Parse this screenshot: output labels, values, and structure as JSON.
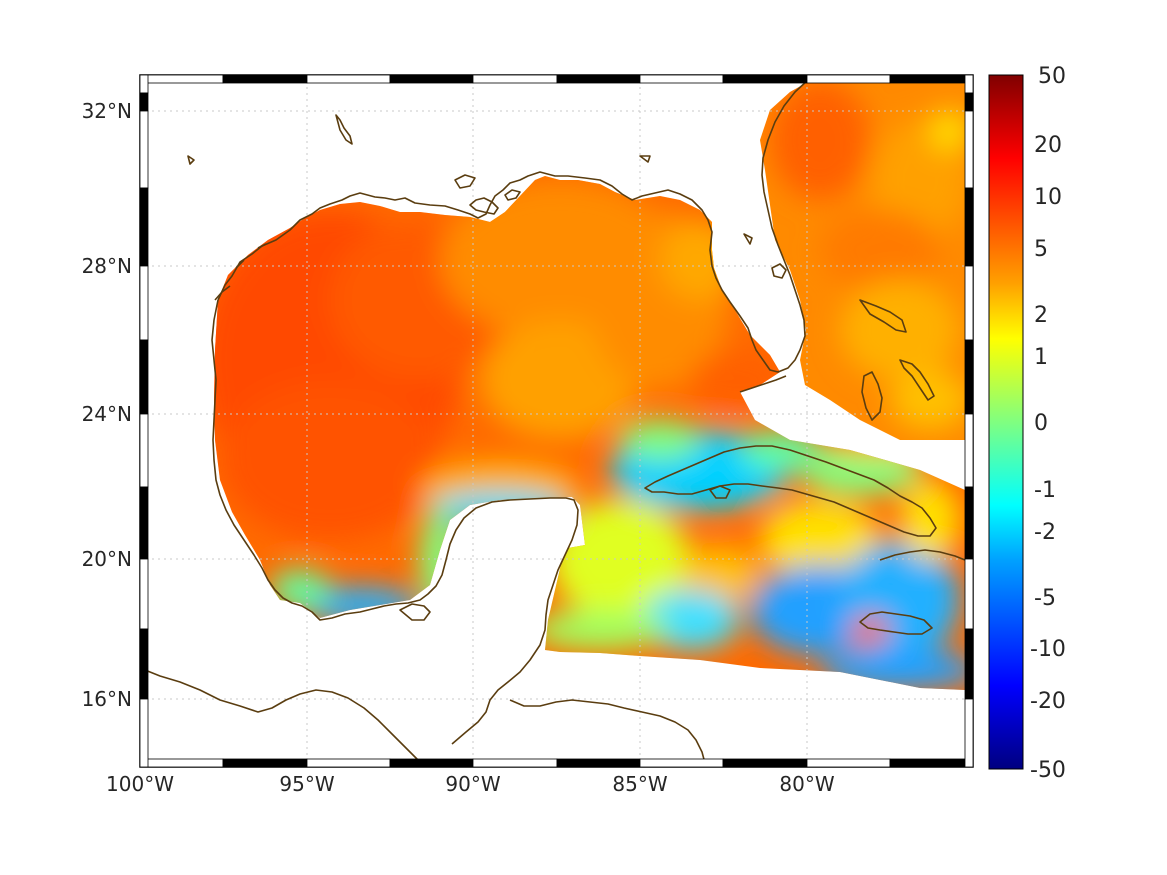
{
  "map": {
    "lon_range": [
      -100,
      -75
    ],
    "lat_range": [
      14.2,
      33
    ],
    "x_ticks": [
      {
        "lon": -100,
        "label": "100°W"
      },
      {
        "lon": -95,
        "label": "95°W"
      },
      {
        "lon": -90,
        "label": "90°W"
      },
      {
        "lon": -85,
        "label": "85°W"
      },
      {
        "lon": -80,
        "label": "80°W"
      }
    ],
    "y_ticks": [
      {
        "lat": 32,
        "label": "32°N"
      },
      {
        "lat": 28,
        "label": "28°N"
      },
      {
        "lat": 24,
        "label": "24°N"
      },
      {
        "lat": 20,
        "label": "20°N"
      },
      {
        "lat": 16,
        "label": "16°N"
      }
    ],
    "grid": "dotted",
    "frame": "black-white checkered",
    "coastline_color": "#5a3d10"
  },
  "colorbar": {
    "labels": [
      "50",
      "20",
      "10",
      "5",
      "2",
      "1",
      "0",
      "-1",
      "-2",
      "-5",
      "-10",
      "-20",
      "-50"
    ],
    "colormap": "jet",
    "scale": "symmetric nonlinear"
  },
  "colors": {
    "dark_red": "#800000",
    "red": "#ff2000",
    "orange": "#ff8000",
    "yellow": "#ffe000",
    "green": "#80ff80",
    "cyan": "#00e0ff",
    "blue": "#0040ff",
    "dark_blue": "#000080"
  }
}
